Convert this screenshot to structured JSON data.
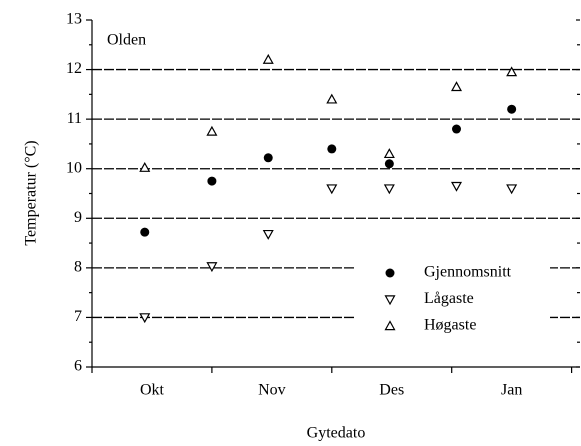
{
  "chart_data": {
    "type": "scatter",
    "title": "Olden",
    "x_label": "Gytedato",
    "y_label": "Temperatur (°C)",
    "x": [
      0.44,
      1.0,
      1.47,
      2.0,
      2.48,
      3.04,
      3.5
    ],
    "series": [
      {
        "name": "Gjennomsnitt",
        "color": "#000000",
        "marker": "circle",
        "values": [
          8.72,
          9.75,
          10.22,
          10.4,
          10.1,
          10.8,
          11.2
        ]
      },
      {
        "name": "Lågaste",
        "color": "#000000",
        "marker": "triangle-down",
        "values": [
          7.0,
          8.03,
          8.68,
          9.6,
          9.6,
          9.65,
          9.6
        ]
      },
      {
        "name": "Høgaste",
        "color": "#000000",
        "marker": "triangle-up",
        "values": [
          10.02,
          10.75,
          12.2,
          11.4,
          10.3,
          11.65,
          11.95
        ]
      }
    ],
    "xlim": [
      0,
      4.07
    ],
    "xticks": [
      {
        "value": 0.5,
        "label": "Okt"
      },
      {
        "value": 1.5,
        "label": "Nov"
      },
      {
        "value": 2.5,
        "label": "Des"
      },
      {
        "value": 3.5,
        "label": "Jan"
      }
    ],
    "xminor_ticks": [
      0,
      1,
      2,
      3,
      4
    ],
    "ylim": [
      6,
      13
    ],
    "yticks": [
      6,
      7,
      8,
      9,
      10,
      11,
      12,
      13
    ],
    "yminor_ticks": [
      6.5,
      7.5,
      8.5,
      9.5,
      10.5,
      11.5,
      12.5
    ],
    "grid": true,
    "legend": "lower right"
  }
}
